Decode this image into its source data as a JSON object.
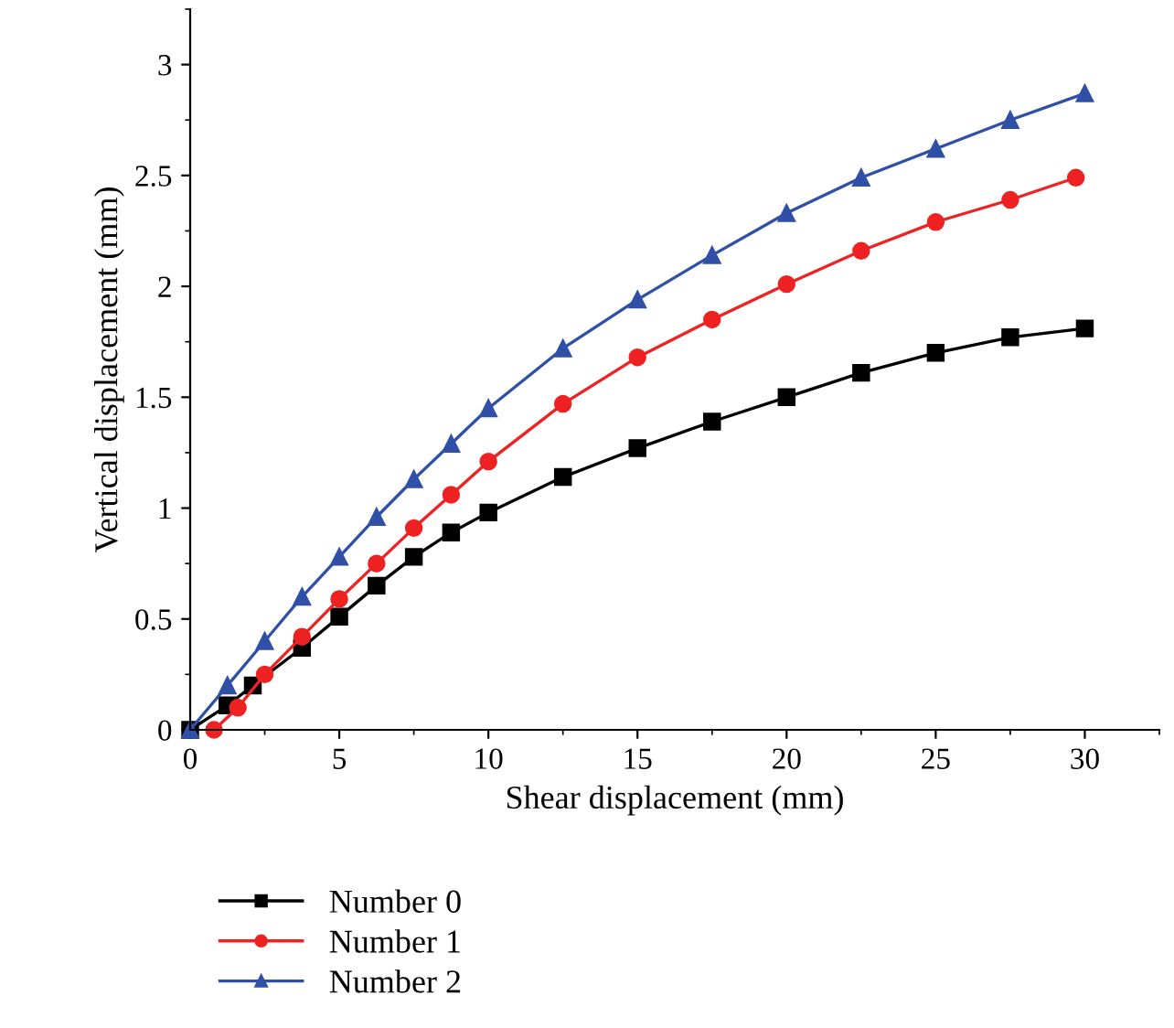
{
  "chart_data": {
    "type": "line",
    "xlabel": "Shear displacement (mm)",
    "ylabel": "Vertical displacement (mm)",
    "xlim": [
      0,
      32.5
    ],
    "ylim": [
      0,
      3.25
    ],
    "xticks": [
      0,
      5,
      10,
      15,
      20,
      25,
      30
    ],
    "yticks": [
      0,
      0.5,
      1,
      1.5,
      2,
      2.5,
      3
    ],
    "grid": false,
    "legend": "bottom left",
    "line_style": "solid",
    "series": [
      {
        "name": "Number 0",
        "color": "#000000",
        "marker": "square",
        "x": [
          0,
          1.25,
          2.1,
          3.75,
          5,
          6.25,
          7.5,
          8.75,
          10,
          12.5,
          15,
          17.5,
          20,
          22.5,
          25,
          27.5,
          30
        ],
        "values": [
          0,
          0.11,
          0.2,
          0.37,
          0.51,
          0.65,
          0.78,
          0.89,
          0.98,
          1.14,
          1.27,
          1.39,
          1.5,
          1.61,
          1.7,
          1.77,
          1.81
        ]
      },
      {
        "name": "Number 1",
        "color": "#ee2222",
        "marker": "circle",
        "x": [
          0.8,
          1.6,
          2.5,
          3.75,
          5,
          6.25,
          7.5,
          8.75,
          10,
          12.5,
          15,
          17.5,
          20,
          22.5,
          25,
          27.5,
          29.7
        ],
        "values": [
          0,
          0.1,
          0.25,
          0.42,
          0.59,
          0.75,
          0.91,
          1.06,
          1.21,
          1.47,
          1.68,
          1.85,
          2.01,
          2.16,
          2.29,
          2.39,
          2.49
        ]
      },
      {
        "name": "Number 2",
        "color": "#3050a8",
        "marker": "triangle",
        "x": [
          0,
          1.25,
          2.5,
          3.75,
          5,
          6.25,
          7.5,
          8.75,
          10,
          12.5,
          15,
          17.5,
          20,
          22.5,
          25,
          27.5,
          30
        ],
        "values": [
          0,
          0.2,
          0.4,
          0.6,
          0.78,
          0.96,
          1.13,
          1.29,
          1.45,
          1.72,
          1.94,
          2.14,
          2.33,
          2.49,
          2.62,
          2.75,
          2.87
        ]
      }
    ]
  }
}
